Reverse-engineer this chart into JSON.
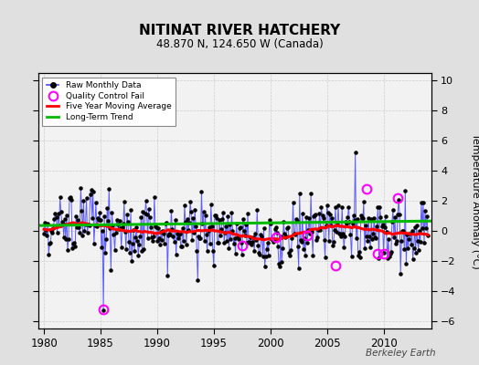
{
  "title": "NITINAT RIVER HATCHERY",
  "subtitle": "48.870 N, 124.650 W (Canada)",
  "ylabel": "Temperature Anomaly (°C)",
  "watermark": "Berkeley Earth",
  "xlim": [
    1979.5,
    2014.2
  ],
  "ylim": [
    -6.5,
    10.5
  ],
  "yticks": [
    -6,
    -4,
    -2,
    0,
    2,
    4,
    6,
    8,
    10
  ],
  "xticks": [
    1980,
    1985,
    1990,
    1995,
    2000,
    2005,
    2010
  ],
  "bg_color": "#e8e8e8",
  "plot_bg_color": "#f2f2f2",
  "qc_fail_points": [
    {
      "year": 1985.25,
      "value": -5.2
    },
    {
      "year": 1997.5,
      "value": -1.0
    },
    {
      "year": 2000.5,
      "value": -0.4
    },
    {
      "year": 2003.25,
      "value": -0.3
    },
    {
      "year": 2005.75,
      "value": -2.3
    },
    {
      "year": 2008.5,
      "value": 2.8
    },
    {
      "year": 2009.5,
      "value": -1.5
    },
    {
      "year": 2010.0,
      "value": -1.5
    },
    {
      "year": 2011.25,
      "value": 2.2
    }
  ],
  "long_trend": {
    "years": [
      1979.5,
      2014.2
    ],
    "values": [
      0.35,
      0.65
    ]
  },
  "colors": {
    "raw_line": "#4444ff",
    "raw_dot": "#000000",
    "qc_fail": "#ff00ff",
    "moving_avg": "#ff0000",
    "long_trend": "#00bb00",
    "grid": "#cccccc",
    "background": "#f2f2f2",
    "outer_bg": "#e0e0e0"
  },
  "seed": 15
}
